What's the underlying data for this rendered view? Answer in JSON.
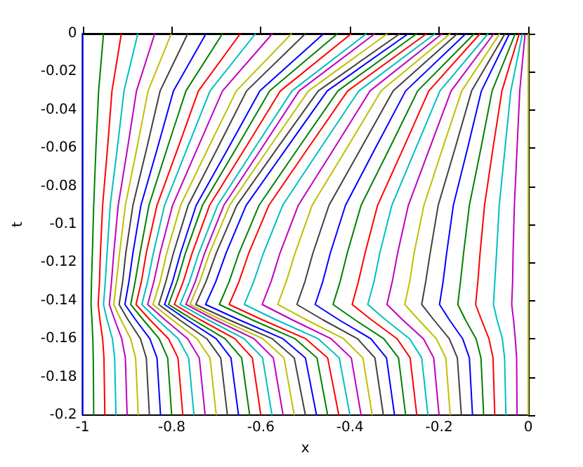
{
  "chart_data": {
    "type": "line",
    "xlabel": "x",
    "ylabel": "t",
    "xlim": [
      -1,
      0
    ],
    "xticks": [
      -1,
      -0.8,
      -0.6,
      -0.4,
      -0.2,
      0
    ],
    "ylim": [
      -0.2,
      0
    ],
    "yticks": [
      -0.2,
      -0.18,
      -0.16,
      -0.14,
      -0.12,
      -0.1,
      -0.08,
      -0.06,
      -0.04,
      -0.02,
      0
    ],
    "series": [
      {
        "color": "#0000ff",
        "x": [
          -1,
          -1,
          -1,
          -1,
          -1,
          -1,
          -1,
          -1,
          -1,
          -1,
          -1
        ],
        "values": [
          0,
          -0.03,
          -0.06,
          -0.09,
          -0.115,
          -0.13,
          -0.142,
          -0.15,
          -0.16,
          -0.17,
          -0.2
        ]
      },
      {
        "color": "#008000",
        "x": [
          -0.953,
          -0.964,
          -0.97,
          -0.975,
          -0.978,
          -0.98,
          -0.981,
          -0.979,
          -0.977,
          -0.976,
          -0.975
        ],
        "values": [
          0,
          -0.03,
          -0.06,
          -0.09,
          -0.115,
          -0.13,
          -0.142,
          -0.15,
          -0.16,
          -0.17,
          -0.2
        ]
      },
      {
        "color": "#ff0000",
        "x": [
          -0.913,
          -0.934,
          -0.944,
          -0.955,
          -0.96,
          -0.962,
          -0.965,
          -0.961,
          -0.955,
          -0.952,
          -0.95
        ],
        "values": [
          0,
          -0.03,
          -0.06,
          -0.09,
          -0.115,
          -0.13,
          -0.142,
          -0.15,
          -0.16,
          -0.17,
          -0.2
        ]
      },
      {
        "color": "#00bfbf",
        "x": [
          -0.876,
          -0.907,
          -0.922,
          -0.938,
          -0.945,
          -0.949,
          -0.953,
          -0.945,
          -0.933,
          -0.928,
          -0.925
        ],
        "values": [
          0,
          -0.03,
          -0.06,
          -0.09,
          -0.115,
          -0.13,
          -0.142,
          -0.15,
          -0.16,
          -0.17,
          -0.2
        ]
      },
      {
        "color": "#bf00bf",
        "x": [
          -0.838,
          -0.879,
          -0.899,
          -0.92,
          -0.93,
          -0.935,
          -0.94,
          -0.928,
          -0.912,
          -0.904,
          -0.9
        ],
        "values": [
          0,
          -0.03,
          -0.06,
          -0.09,
          -0.115,
          -0.13,
          -0.142,
          -0.15,
          -0.16,
          -0.17,
          -0.2
        ]
      },
      {
        "color": "#bfbf00",
        "x": [
          -0.801,
          -0.853,
          -0.878,
          -0.904,
          -0.917,
          -0.924,
          -0.93,
          -0.914,
          -0.892,
          -0.881,
          -0.875
        ],
        "values": [
          0,
          -0.03,
          -0.06,
          -0.09,
          -0.115,
          -0.13,
          -0.142,
          -0.15,
          -0.16,
          -0.17,
          -0.2
        ]
      },
      {
        "color": "#404040",
        "x": [
          -0.764,
          -0.826,
          -0.856,
          -0.887,
          -0.903,
          -0.91,
          -0.918,
          -0.898,
          -0.87,
          -0.857,
          -0.85
        ],
        "values": [
          0,
          -0.03,
          -0.06,
          -0.09,
          -0.115,
          -0.13,
          -0.142,
          -0.15,
          -0.16,
          -0.17,
          -0.2
        ]
      },
      {
        "color": "#0000ff",
        "x": [
          -0.723,
          -0.796,
          -0.832,
          -0.869,
          -0.887,
          -0.896,
          -0.905,
          -0.881,
          -0.849,
          -0.833,
          -0.825
        ],
        "values": [
          0,
          -0.03,
          -0.06,
          -0.09,
          -0.115,
          -0.13,
          -0.142,
          -0.15,
          -0.16,
          -0.17,
          -0.2
        ]
      },
      {
        "color": "#008000",
        "x": [
          -0.686,
          -0.768,
          -0.81,
          -0.851,
          -0.871,
          -0.882,
          -0.892,
          -0.864,
          -0.828,
          -0.809,
          -0.8
        ],
        "values": [
          0,
          -0.03,
          -0.06,
          -0.09,
          -0.115,
          -0.13,
          -0.142,
          -0.15,
          -0.16,
          -0.17,
          -0.2
        ]
      },
      {
        "color": "#ff0000",
        "x": [
          -0.646,
          -0.74,
          -0.786,
          -0.833,
          -0.857,
          -0.868,
          -0.88,
          -0.849,
          -0.807,
          -0.786,
          -0.775
        ],
        "values": [
          0,
          -0.03,
          -0.06,
          -0.09,
          -0.115,
          -0.13,
          -0.142,
          -0.15,
          -0.16,
          -0.17,
          -0.2
        ]
      },
      {
        "color": "#00bfbf",
        "x": [
          -0.612,
          -0.714,
          -0.765,
          -0.816,
          -0.841,
          -0.854,
          -0.867,
          -0.832,
          -0.785,
          -0.762,
          -0.75
        ],
        "values": [
          0,
          -0.03,
          -0.06,
          -0.09,
          -0.115,
          -0.13,
          -0.142,
          -0.15,
          -0.16,
          -0.17,
          -0.2
        ]
      },
      {
        "color": "#bf00bf",
        "x": [
          -0.574,
          -0.686,
          -0.742,
          -0.798,
          -0.826,
          -0.84,
          -0.854,
          -0.815,
          -0.764,
          -0.738,
          -0.725
        ],
        "values": [
          0,
          -0.03,
          -0.06,
          -0.09,
          -0.115,
          -0.13,
          -0.142,
          -0.15,
          -0.16,
          -0.17,
          -0.2
        ]
      },
      {
        "color": "#bfbf00",
        "x": [
          -0.531,
          -0.655,
          -0.718,
          -0.78,
          -0.811,
          -0.826,
          -0.842,
          -0.799,
          -0.743,
          -0.714,
          -0.7
        ],
        "values": [
          0,
          -0.03,
          -0.06,
          -0.09,
          -0.115,
          -0.13,
          -0.142,
          -0.15,
          -0.16,
          -0.17,
          -0.2
        ]
      },
      {
        "color": "#404040",
        "x": [
          -0.5,
          -0.632,
          -0.697,
          -0.763,
          -0.796,
          -0.813,
          -0.829,
          -0.783,
          -0.721,
          -0.69,
          -0.675
        ],
        "values": [
          0,
          -0.03,
          -0.06,
          -0.09,
          -0.115,
          -0.13,
          -0.142,
          -0.15,
          -0.16,
          -0.17,
          -0.2
        ]
      },
      {
        "color": "#0000ff",
        "x": [
          -0.459,
          -0.602,
          -0.673,
          -0.745,
          -0.78,
          -0.798,
          -0.816,
          -0.766,
          -0.7,
          -0.667,
          -0.65
        ],
        "values": [
          0,
          -0.03,
          -0.06,
          -0.09,
          -0.115,
          -0.13,
          -0.142,
          -0.15,
          -0.16,
          -0.17,
          -0.2
        ]
      },
      {
        "color": "#008000",
        "x": [
          -0.428,
          -0.58,
          -0.655,
          -0.731,
          -0.769,
          -0.788,
          -0.807,
          -0.752,
          -0.68,
          -0.643,
          -0.625
        ],
        "values": [
          0,
          -0.03,
          -0.06,
          -0.09,
          -0.115,
          -0.13,
          -0.142,
          -0.15,
          -0.16,
          -0.17,
          -0.2
        ]
      },
      {
        "color": "#ff0000",
        "x": [
          -0.397,
          -0.556,
          -0.635,
          -0.715,
          -0.754,
          -0.774,
          -0.794,
          -0.736,
          -0.658,
          -0.619,
          -0.6
        ],
        "values": [
          0,
          -0.03,
          -0.06,
          -0.09,
          -0.115,
          -0.13,
          -0.142,
          -0.15,
          -0.16,
          -0.17,
          -0.2
        ]
      },
      {
        "color": "#00bfbf",
        "x": [
          -0.363,
          -0.53,
          -0.614,
          -0.697,
          -0.739,
          -0.76,
          -0.781,
          -0.719,
          -0.637,
          -0.596,
          -0.575
        ],
        "values": [
          0,
          -0.03,
          -0.06,
          -0.09,
          -0.115,
          -0.13,
          -0.142,
          -0.15,
          -0.16,
          -0.17,
          -0.2
        ]
      },
      {
        "color": "#bf00bf",
        "x": [
          -0.344,
          -0.514,
          -0.598,
          -0.683,
          -0.726,
          -0.747,
          -0.768,
          -0.703,
          -0.615,
          -0.572,
          -0.55
        ],
        "values": [
          0,
          -0.03,
          -0.06,
          -0.09,
          -0.115,
          -0.13,
          -0.142,
          -0.15,
          -0.16,
          -0.17,
          -0.2
        ]
      },
      {
        "color": "#bfbf00",
        "x": [
          -0.316,
          -0.493,
          -0.582,
          -0.67,
          -0.715,
          -0.737,
          -0.759,
          -0.689,
          -0.595,
          -0.548,
          -0.525
        ],
        "values": [
          0,
          -0.03,
          -0.06,
          -0.09,
          -0.115,
          -0.13,
          -0.142,
          -0.15,
          -0.16,
          -0.17,
          -0.2
        ]
      },
      {
        "color": "#404040",
        "x": [
          -0.288,
          -0.471,
          -0.563,
          -0.654,
          -0.7,
          -0.723,
          -0.746,
          -0.672,
          -0.574,
          -0.525,
          -0.5
        ],
        "values": [
          0,
          -0.03,
          -0.06,
          -0.09,
          -0.115,
          -0.13,
          -0.142,
          -0.15,
          -0.16,
          -0.17,
          -0.2
        ]
      },
      {
        "color": "#0000ff",
        "x": [
          -0.269,
          -0.451,
          -0.542,
          -0.633,
          -0.678,
          -0.701,
          -0.724,
          -0.649,
          -0.55,
          -0.5,
          -0.475
        ],
        "values": [
          0,
          -0.03,
          -0.06,
          -0.09,
          -0.115,
          -0.13,
          -0.142,
          -0.15,
          -0.16,
          -0.17,
          -0.2
        ]
      },
      {
        "color": "#008000",
        "x": [
          -0.25,
          -0.427,
          -0.516,
          -0.604,
          -0.649,
          -0.671,
          -0.693,
          -0.62,
          -0.523,
          -0.474,
          -0.45
        ],
        "values": [
          0,
          -0.03,
          -0.06,
          -0.09,
          -0.115,
          -0.13,
          -0.142,
          -0.15,
          -0.16,
          -0.17,
          -0.2
        ]
      },
      {
        "color": "#ff0000",
        "x": [
          -0.228,
          -0.405,
          -0.494,
          -0.582,
          -0.627,
          -0.649,
          -0.671,
          -0.597,
          -0.499,
          -0.45,
          -0.425
        ],
        "values": [
          0,
          -0.03,
          -0.06,
          -0.09,
          -0.115,
          -0.13,
          -0.142,
          -0.15,
          -0.16,
          -0.17,
          -0.2
        ]
      },
      {
        "color": "#00bfbf",
        "x": [
          -0.209,
          -0.38,
          -0.466,
          -0.551,
          -0.594,
          -0.616,
          -0.637,
          -0.566,
          -0.471,
          -0.424,
          -0.4
        ],
        "values": [
          0,
          -0.03,
          -0.06,
          -0.09,
          -0.115,
          -0.13,
          -0.142,
          -0.15,
          -0.16,
          -0.17,
          -0.2
        ]
      },
      {
        "color": "#bf00bf",
        "x": [
          -0.193,
          -0.355,
          -0.435,
          -0.516,
          -0.557,
          -0.577,
          -0.597,
          -0.53,
          -0.442,
          -0.397,
          -0.375
        ],
        "values": [
          0,
          -0.03,
          -0.06,
          -0.09,
          -0.115,
          -0.13,
          -0.142,
          -0.15,
          -0.16,
          -0.17,
          -0.2
        ]
      },
      {
        "color": "#bfbf00",
        "x": [
          -0.175,
          -0.33,
          -0.407,
          -0.485,
          -0.523,
          -0.543,
          -0.562,
          -0.498,
          -0.414,
          -0.371,
          -0.35
        ],
        "values": [
          0,
          -0.03,
          -0.06,
          -0.09,
          -0.115,
          -0.13,
          -0.142,
          -0.15,
          -0.16,
          -0.17,
          -0.2
        ]
      },
      {
        "color": "#404040",
        "x": [
          -0.159,
          -0.303,
          -0.375,
          -0.447,
          -0.483,
          -0.501,
          -0.519,
          -0.461,
          -0.383,
          -0.344,
          -0.325
        ],
        "values": [
          0,
          -0.03,
          -0.06,
          -0.09,
          -0.115,
          -0.13,
          -0.142,
          -0.15,
          -0.16,
          -0.17,
          -0.2
        ]
      },
      {
        "color": "#0000ff",
        "x": [
          -0.14,
          -0.275,
          -0.343,
          -0.41,
          -0.444,
          -0.461,
          -0.478,
          -0.425,
          -0.353,
          -0.318,
          -0.3
        ],
        "values": [
          0,
          -0.03,
          -0.06,
          -0.09,
          -0.115,
          -0.13,
          -0.142,
          -0.15,
          -0.16,
          -0.17,
          -0.2
        ]
      },
      {
        "color": "#008000",
        "x": [
          -0.121,
          -0.248,
          -0.311,
          -0.375,
          -0.406,
          -0.422,
          -0.438,
          -0.389,
          -0.324,
          -0.291,
          -0.275
        ],
        "values": [
          0,
          -0.03,
          -0.06,
          -0.09,
          -0.115,
          -0.13,
          -0.142,
          -0.15,
          -0.16,
          -0.17,
          -0.2
        ]
      },
      {
        "color": "#ff0000",
        "x": [
          -0.108,
          -0.223,
          -0.28,
          -0.338,
          -0.366,
          -0.381,
          -0.395,
          -0.352,
          -0.294,
          -0.265,
          -0.25
        ],
        "values": [
          0,
          -0.03,
          -0.06,
          -0.09,
          -0.115,
          -0.13,
          -0.142,
          -0.15,
          -0.16,
          -0.17,
          -0.2
        ]
      },
      {
        "color": "#00bfbf",
        "x": [
          -0.09,
          -0.198,
          -0.252,
          -0.306,
          -0.333,
          -0.346,
          -0.36,
          -0.32,
          -0.266,
          -0.239,
          -0.225
        ],
        "values": [
          0,
          -0.03,
          -0.06,
          -0.09,
          -0.115,
          -0.13,
          -0.142,
          -0.15,
          -0.16,
          -0.17,
          -0.2
        ]
      },
      {
        "color": "#bf00bf",
        "x": [
          -0.077,
          -0.173,
          -0.221,
          -0.269,
          -0.293,
          -0.305,
          -0.317,
          -0.282,
          -0.235,
          -0.212,
          -0.2
        ],
        "values": [
          0,
          -0.03,
          -0.06,
          -0.09,
          -0.115,
          -0.13,
          -0.142,
          -0.15,
          -0.16,
          -0.17,
          -0.2
        ]
      },
      {
        "color": "#bfbf00",
        "x": [
          -0.064,
          -0.149,
          -0.192,
          -0.234,
          -0.256,
          -0.266,
          -0.277,
          -0.246,
          -0.206,
          -0.185,
          -0.175
        ],
        "values": [
          0,
          -0.03,
          -0.06,
          -0.09,
          -0.115,
          -0.13,
          -0.142,
          -0.15,
          -0.16,
          -0.17,
          -0.2
        ]
      },
      {
        "color": "#404040",
        "x": [
          -0.052,
          -0.127,
          -0.164,
          -0.202,
          -0.22,
          -0.23,
          -0.239,
          -0.212,
          -0.177,
          -0.159,
          -0.15
        ],
        "values": [
          0,
          -0.03,
          -0.06,
          -0.09,
          -0.115,
          -0.13,
          -0.142,
          -0.15,
          -0.16,
          -0.17,
          -0.2
        ]
      },
      {
        "color": "#0000ff",
        "x": [
          -0.042,
          -0.105,
          -0.136,
          -0.168,
          -0.183,
          -0.191,
          -0.199,
          -0.177,
          -0.147,
          -0.132,
          -0.125
        ],
        "values": [
          0,
          -0.03,
          -0.06,
          -0.09,
          -0.115,
          -0.13,
          -0.142,
          -0.15,
          -0.16,
          -0.17,
          -0.2
        ]
      },
      {
        "color": "#008000",
        "x": [
          -0.029,
          -0.081,
          -0.106,
          -0.132,
          -0.145,
          -0.152,
          -0.158,
          -0.141,
          -0.117,
          -0.106,
          -0.1
        ],
        "values": [
          0,
          -0.03,
          -0.06,
          -0.09,
          -0.115,
          -0.13,
          -0.142,
          -0.15,
          -0.16,
          -0.17,
          -0.2
        ]
      },
      {
        "color": "#ff0000",
        "x": [
          -0.02,
          -0.059,
          -0.079,
          -0.098,
          -0.108,
          -0.113,
          -0.118,
          -0.105,
          -0.088,
          -0.079,
          -0.075
        ],
        "values": [
          0,
          -0.03,
          -0.06,
          -0.09,
          -0.115,
          -0.13,
          -0.142,
          -0.15,
          -0.16,
          -0.17,
          -0.2
        ]
      },
      {
        "color": "#00bfbf",
        "x": [
          -0.013,
          -0.039,
          -0.052,
          -0.065,
          -0.071,
          -0.075,
          -0.078,
          -0.07,
          -0.058,
          -0.053,
          -0.05
        ],
        "values": [
          0,
          -0.03,
          -0.06,
          -0.09,
          -0.115,
          -0.13,
          -0.142,
          -0.15,
          -0.16,
          -0.17,
          -0.2
        ]
      },
      {
        "color": "#bf00bf",
        "x": [
          -0.007,
          -0.019,
          -0.025,
          -0.031,
          -0.034,
          -0.035,
          -0.037,
          -0.033,
          -0.029,
          -0.026,
          -0.025
        ],
        "values": [
          0,
          -0.03,
          -0.06,
          -0.09,
          -0.115,
          -0.13,
          -0.142,
          -0.15,
          -0.16,
          -0.17,
          -0.2
        ]
      },
      {
        "color": "#bfbf00",
        "x": [
          0,
          0,
          0,
          0,
          0,
          0,
          0,
          0,
          0,
          0,
          0
        ],
        "values": [
          0,
          -0.03,
          -0.06,
          -0.09,
          -0.115,
          -0.13,
          -0.142,
          -0.15,
          -0.16,
          -0.17,
          -0.2
        ]
      }
    ]
  }
}
